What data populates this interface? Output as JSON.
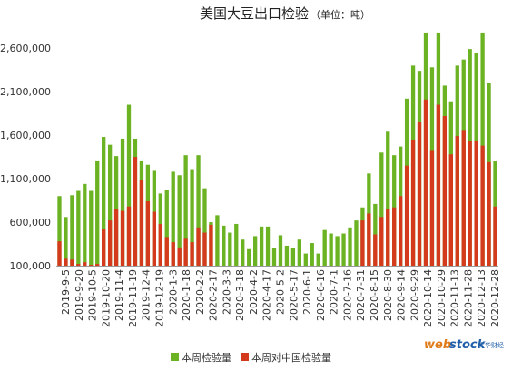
{
  "chart_data": {
    "type": "bar",
    "title": "美国大豆出口检验",
    "subtitle": "（单位：吨）",
    "ylim": [
      100000,
      2800000
    ],
    "y_ticks": [
      100000,
      600000,
      1100000,
      1600000,
      2100000,
      2600000
    ],
    "y_tick_labels": [
      "100,000",
      "600,000",
      "1,100,000",
      "1,600,000",
      "2,100,000",
      "2,600,000"
    ],
    "grid": false,
    "legend_position": "bottom",
    "x_tick_labels": [
      "2019-9-5",
      "2019-9-20",
      "2019-10-5",
      "2019-10-20",
      "2019-11-4",
      "2019-11-19",
      "2019-12-4",
      "2019-12-19",
      "2020-1-3",
      "2020-1-18",
      "2020-2-2",
      "2020-2-17",
      "2020-3-3",
      "2020-3-18",
      "2020-4-2",
      "2020-4-17",
      "2020-5-2",
      "2020-5-17",
      "2020-6-1",
      "2020-6-16",
      "2020-7-1",
      "2020-7-16",
      "2020-7-31",
      "2020-8-15",
      "2020-8-30",
      "2020-9-14",
      "2020-9-29",
      "2020-10-14",
      "2020-10-29",
      "2020-11-13",
      "2020-11-28",
      "2020-12-13",
      "2020-12-28"
    ],
    "series": [
      {
        "name": "本周检验量",
        "color": "#6cb324",
        "values": [
          900000,
          660000,
          910000,
          960000,
          1040000,
          960000,
          1310000,
          1580000,
          1490000,
          1360000,
          1560000,
          1950000,
          1560000,
          1310000,
          1260000,
          1190000,
          930000,
          970000,
          1180000,
          1140000,
          1370000,
          1210000,
          1370000,
          990000,
          600000,
          680000,
          560000,
          480000,
          580000,
          400000,
          290000,
          440000,
          550000,
          550000,
          300000,
          450000,
          330000,
          300000,
          400000,
          240000,
          360000,
          240000,
          510000,
          470000,
          440000,
          470000,
          540000,
          620000,
          770000,
          1160000,
          810000,
          1400000,
          1640000,
          1370000,
          1470000,
          2020000,
          2400000,
          2340000,
          2780000,
          2380000,
          2780000,
          2170000,
          1990000,
          2400000,
          2470000,
          2590000,
          2550000,
          2780000,
          2200000,
          1300000
        ]
      },
      {
        "name": "本周对中国检验量",
        "color": "#d43a1c",
        "values": [
          380000,
          180000,
          170000,
          120000,
          140000,
          110000,
          120000,
          520000,
          620000,
          750000,
          730000,
          780000,
          1350000,
          1080000,
          840000,
          720000,
          580000,
          430000,
          370000,
          310000,
          420000,
          370000,
          540000,
          480000,
          570000,
          0,
          0,
          0,
          0,
          0,
          0,
          0,
          0,
          0,
          0,
          0,
          0,
          0,
          0,
          0,
          0,
          0,
          0,
          0,
          0,
          0,
          0,
          0,
          620000,
          700000,
          460000,
          660000,
          750000,
          770000,
          900000,
          1250000,
          1550000,
          1750000,
          2010000,
          1430000,
          1950000,
          1820000,
          1380000,
          1590000,
          1660000,
          1530000,
          1540000,
          1480000,
          1290000,
          780000
        ]
      }
    ]
  },
  "legend": [
    {
      "label": "本周检验量",
      "color": "#6cb324"
    },
    {
      "label": "本周对中国检验量",
      "color": "#d43a1c"
    }
  ],
  "watermark": {
    "web": "web",
    "stock": "stock",
    "cn": "文华财经"
  }
}
